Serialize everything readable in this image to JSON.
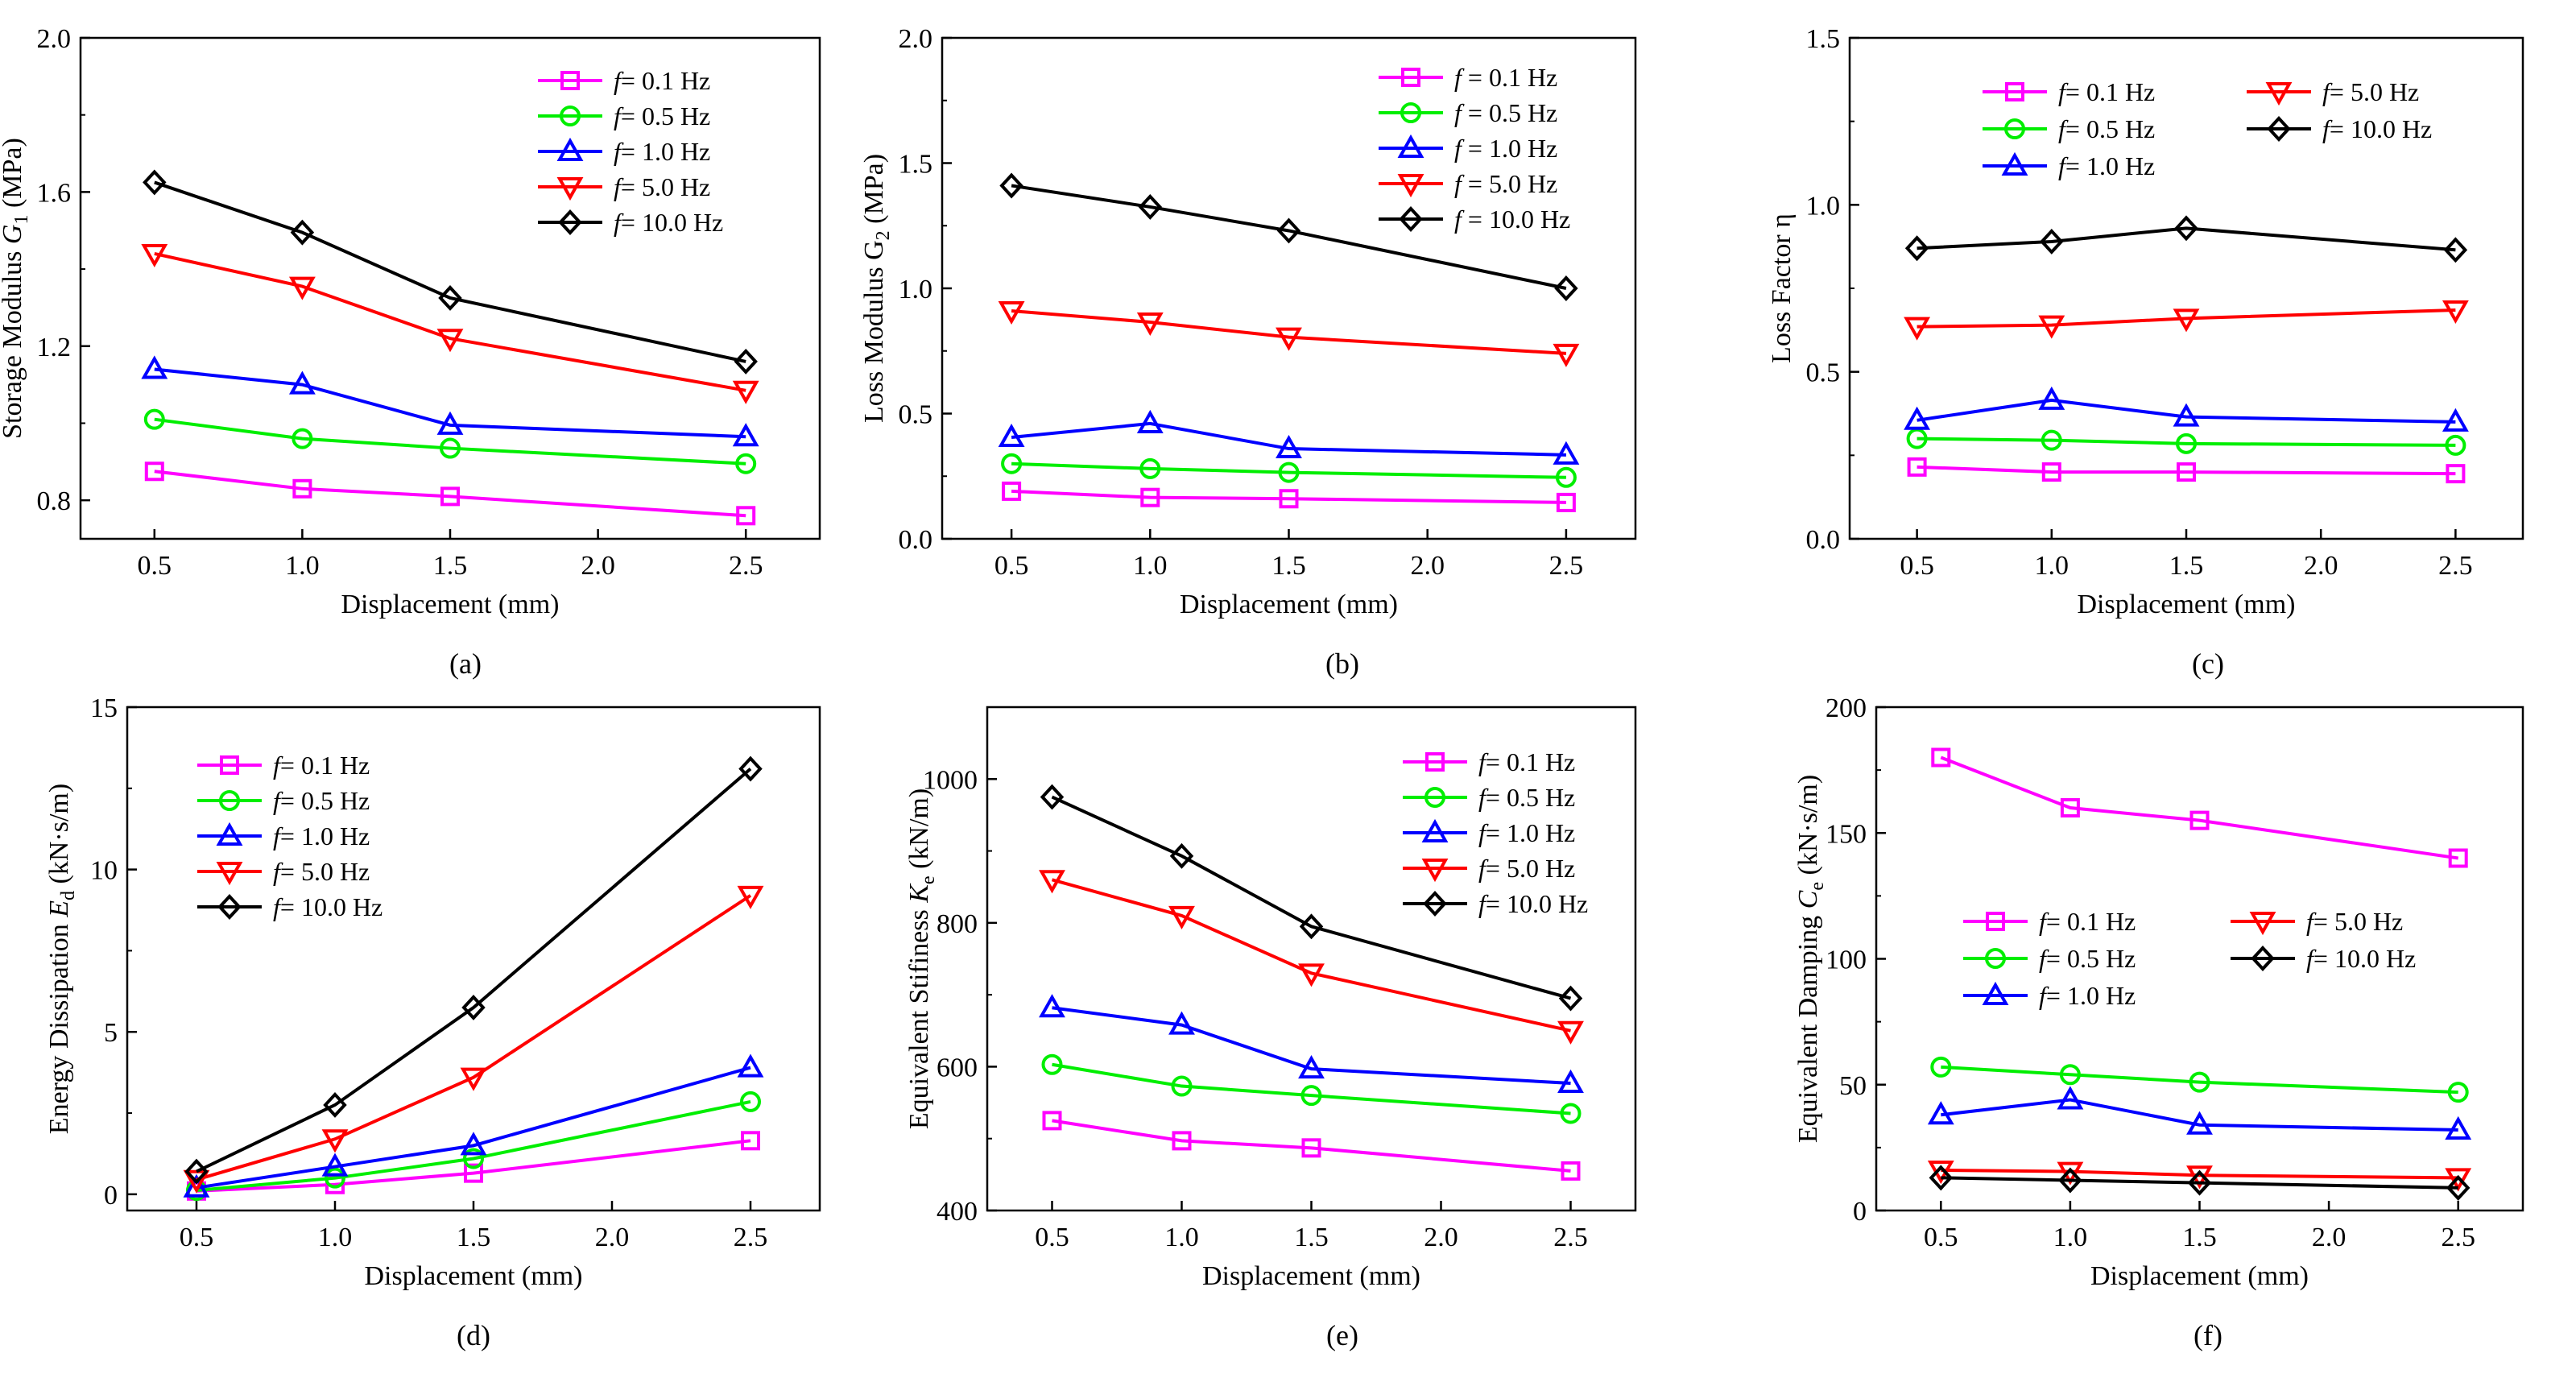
{
  "chart_data": [
    {
      "panel": "(a)",
      "type": "line",
      "caption": "(a)",
      "ylabel": {
        "main": "Storage Modulus ",
        "var": "G",
        "sub": "1",
        "unit": " (MPa)"
      },
      "xlabel": "Displacement (mm)",
      "xlim": [
        0.25,
        2.75
      ],
      "xticks": [
        "0.5",
        "1.0",
        "1.5",
        "2.0",
        "2.5"
      ],
      "ylim": [
        0.7,
        2.0
      ],
      "yticks": [
        "0.8",
        "1.2",
        "1.6",
        "2.0"
      ],
      "legend_position": "top-right",
      "x": [
        0.5,
        1.0,
        1.5,
        2.5
      ],
      "series": [
        {
          "name": "f = 0.1 Hz",
          "legend_var": "f",
          "legend_text": "=   0.1 Hz",
          "marker": "square",
          "color": "#ff00ff",
          "values": [
            0.875,
            0.83,
            0.81,
            0.76
          ]
        },
        {
          "name": "f = 0.5 Hz",
          "legend_var": "f",
          "legend_text": "=   0.5 Hz",
          "marker": "circle",
          "color": "#00ee00",
          "values": [
            1.01,
            0.96,
            0.935,
            0.895
          ]
        },
        {
          "name": "f = 1.0 Hz",
          "legend_var": "f",
          "legend_text": "=   1.0 Hz",
          "marker": "triangle-up",
          "color": "#0000ff",
          "values": [
            1.14,
            1.1,
            0.995,
            0.965
          ]
        },
        {
          "name": "f = 5.0 Hz",
          "legend_var": "f",
          "legend_text": "=   5.0 Hz",
          "marker": "triangle-down",
          "color": "#ff0000",
          "values": [
            1.44,
            1.355,
            1.22,
            1.085
          ]
        },
        {
          "name": "f = 10.0 Hz",
          "legend_var": "f",
          "legend_text": "= 10.0 Hz",
          "marker": "diamond",
          "color": "#000000",
          "values": [
            1.625,
            1.495,
            1.325,
            1.16
          ]
        }
      ]
    },
    {
      "panel": "(b)",
      "type": "line",
      "caption": "(b)",
      "ylabel": {
        "main": "Loss Modulus G",
        "var": "",
        "sub": "2",
        "unit": " (MPa)"
      },
      "xlabel": "Displacement (mm)",
      "xlim": [
        0.25,
        2.75
      ],
      "xticks": [
        "0.5",
        "1.0",
        "1.5",
        "2.0",
        "2.5"
      ],
      "ylim": [
        0.0,
        2.0
      ],
      "yticks": [
        "0.0",
        "0.5",
        "1.0",
        "1.5",
        "2.0"
      ],
      "legend_position": "top-right",
      "x": [
        0.5,
        1.0,
        1.5,
        2.5
      ],
      "series": [
        {
          "name": "f = 0.1 Hz",
          "legend_var": "f",
          "legend_text": " = 0.1 Hz",
          "marker": "square",
          "color": "#ff00ff",
          "values": [
            0.19,
            0.165,
            0.16,
            0.145
          ]
        },
        {
          "name": "f = 0.5 Hz",
          "legend_var": "f",
          "legend_text": " = 0.5 Hz",
          "marker": "circle",
          "color": "#00ee00",
          "values": [
            0.3,
            0.28,
            0.265,
            0.245
          ]
        },
        {
          "name": "f = 1.0 Hz",
          "legend_var": "f",
          "legend_text": " = 1.0 Hz",
          "marker": "triangle-up",
          "color": "#0000ff",
          "values": [
            0.405,
            0.46,
            0.36,
            0.335
          ]
        },
        {
          "name": "f = 5.0 Hz",
          "legend_var": "f",
          "legend_text": " = 5.0 Hz",
          "marker": "triangle-down",
          "color": "#ff0000",
          "values": [
            0.91,
            0.865,
            0.805,
            0.74
          ]
        },
        {
          "name": "f = 10.0 Hz",
          "legend_var": "f",
          "legend_text": " = 10.0 Hz",
          "marker": "diamond",
          "color": "#000000",
          "values": [
            1.41,
            1.325,
            1.23,
            1.0
          ]
        }
      ]
    },
    {
      "panel": "(c)",
      "type": "line",
      "caption": "(c)",
      "ylabel": {
        "main": "Loss Factor η",
        "var": "",
        "sub": "",
        "unit": ""
      },
      "xlabel": "Displacement (mm)",
      "xlim": [
        0.25,
        2.75
      ],
      "xticks": [
        "0.5",
        "1.0",
        "1.5",
        "2.0",
        "2.5"
      ],
      "ylim": [
        0.0,
        1.5
      ],
      "yticks": [
        "0.0",
        "0.5",
        "1.0",
        "1.5"
      ],
      "legend_position": "top, two columns",
      "x": [
        0.5,
        1.0,
        1.5,
        2.5
      ],
      "series": [
        {
          "name": "f = 0.1 Hz",
          "legend_var": "f",
          "legend_text": "=  0.1 Hz",
          "marker": "square",
          "color": "#ff00ff",
          "values": [
            0.215,
            0.2,
            0.2,
            0.195
          ]
        },
        {
          "name": "f = 0.5 Hz",
          "legend_var": "f",
          "legend_text": "=  0.5 Hz",
          "marker": "circle",
          "color": "#00ee00",
          "values": [
            0.3,
            0.295,
            0.285,
            0.28
          ]
        },
        {
          "name": "f = 1.0 Hz",
          "legend_var": "f",
          "legend_text": "=  1.0 Hz",
          "marker": "triangle-up",
          "color": "#0000ff",
          "values": [
            0.355,
            0.415,
            0.365,
            0.35
          ]
        },
        {
          "name": "f = 5.0 Hz",
          "legend_var": "f",
          "legend_text": "=  5.0 Hz",
          "marker": "triangle-down",
          "color": "#ff0000",
          "values": [
            0.635,
            0.64,
            0.66,
            0.685
          ]
        },
        {
          "name": "f = 10.0 Hz",
          "legend_var": "f",
          "legend_text": "= 10.0 Hz",
          "marker": "diamond",
          "color": "#000000",
          "values": [
            0.87,
            0.89,
            0.93,
            0.865
          ]
        }
      ]
    },
    {
      "panel": "(d)",
      "type": "line",
      "caption": "(d)",
      "ylabel": {
        "main": "Energy Dissipation ",
        "var": "E",
        "sub": "d",
        "unit": " (kN·s/m)"
      },
      "xlabel": "Displacement (mm)",
      "xlim": [
        0.25,
        2.75
      ],
      "xticks": [
        "0.5",
        "1.0",
        "1.5",
        "2.0",
        "2.5"
      ],
      "ylim": [
        -0.5,
        15.0
      ],
      "yticks": [
        "0",
        "5",
        "10",
        "15"
      ],
      "ytick_values": [
        0,
        5,
        10,
        15
      ],
      "legend_position": "top-left",
      "x": [
        0.5,
        1.0,
        1.5,
        2.5
      ],
      "series": [
        {
          "name": "f = 0.1 Hz",
          "legend_var": "f",
          "legend_text": "=   0.1 Hz",
          "marker": "square",
          "color": "#ff00ff",
          "values": [
            0.1,
            0.3,
            0.65,
            1.65
          ]
        },
        {
          "name": "f = 0.5 Hz",
          "legend_var": "f",
          "legend_text": "=   0.5 Hz",
          "marker": "circle",
          "color": "#00ee00",
          "values": [
            0.12,
            0.5,
            1.1,
            2.85
          ]
        },
        {
          "name": "f = 1.0 Hz",
          "legend_var": "f",
          "legend_text": "=   1.0 Hz",
          "marker": "triangle-up",
          "color": "#0000ff",
          "values": [
            0.2,
            0.85,
            1.5,
            3.9
          ]
        },
        {
          "name": "f = 5.0 Hz",
          "legend_var": "f",
          "legend_text": "=   5.0 Hz",
          "marker": "triangle-down",
          "color": "#ff0000",
          "values": [
            0.45,
            1.7,
            3.6,
            9.2
          ]
        },
        {
          "name": "f = 10.0 Hz",
          "legend_var": "f",
          "legend_text": "= 10.0 Hz",
          "marker": "diamond",
          "color": "#000000",
          "values": [
            0.7,
            2.75,
            5.75,
            13.1
          ]
        }
      ]
    },
    {
      "panel": "(e)",
      "type": "line",
      "caption": "(e)",
      "ylabel": {
        "main": "Equivalent Stifiness ",
        "var": "K",
        "sub": "e",
        "unit": " (kN/m)"
      },
      "xlabel": "Displacement (mm)",
      "xlim": [
        0.25,
        2.75
      ],
      "xticks": [
        "0.5",
        "1.0",
        "1.5",
        "2.0",
        "2.5"
      ],
      "ylim": [
        400,
        1100
      ],
      "yticks": [
        "400",
        "600",
        "800",
        "1000"
      ],
      "legend_position": "top-right",
      "x": [
        0.5,
        1.0,
        1.5,
        2.5
      ],
      "series": [
        {
          "name": "f = 0.1 Hz",
          "legend_var": "f",
          "legend_text": "=   0.1 Hz",
          "marker": "square",
          "color": "#ff00ff",
          "values": [
            525,
            497,
            487,
            455
          ]
        },
        {
          "name": "f = 0.5 Hz",
          "legend_var": "f",
          "legend_text": "=   0.5 Hz",
          "marker": "circle",
          "color": "#00ee00",
          "values": [
            603,
            573,
            560,
            535
          ]
        },
        {
          "name": "f = 1.0 Hz",
          "legend_var": "f",
          "legend_text": "=   1.0 Hz",
          "marker": "triangle-up",
          "color": "#0000ff",
          "values": [
            682,
            658,
            597,
            577
          ]
        },
        {
          "name": "f = 5.0 Hz",
          "legend_var": "f",
          "legend_text": "=   5.0 Hz",
          "marker": "triangle-down",
          "color": "#ff0000",
          "values": [
            860,
            810,
            730,
            650
          ]
        },
        {
          "name": "f = 10.0 Hz",
          "legend_var": "f",
          "legend_text": "= 10.0 Hz",
          "marker": "diamond",
          "color": "#000000",
          "values": [
            975,
            893,
            795,
            695
          ]
        }
      ]
    },
    {
      "panel": "(f)",
      "type": "line",
      "caption": "(f)",
      "ylabel": {
        "main": "Equivalent Damping ",
        "var": "C",
        "sub": "e",
        "unit": " (kN·s/m)"
      },
      "xlabel": "Displacement (mm)",
      "xlim": [
        0.25,
        2.75
      ],
      "xticks": [
        "0.5",
        "1.0",
        "1.5",
        "2.0",
        "2.5"
      ],
      "ylim": [
        0,
        200
      ],
      "yticks": [
        "0",
        "50",
        "100",
        "150",
        "200"
      ],
      "legend_position": "center, two columns",
      "x": [
        0.5,
        1.0,
        1.5,
        2.5
      ],
      "series": [
        {
          "name": "f = 0.1 Hz",
          "legend_var": "f",
          "legend_text": "=  0.1 Hz",
          "marker": "square",
          "color": "#ff00ff",
          "values": [
            180,
            160,
            155,
            140
          ]
        },
        {
          "name": "f = 0.5 Hz",
          "legend_var": "f",
          "legend_text": "=  0.5 Hz",
          "marker": "circle",
          "color": "#00ee00",
          "values": [
            57,
            54,
            51,
            47
          ]
        },
        {
          "name": "f = 1.0 Hz",
          "legend_var": "f",
          "legend_text": "=  1.0 Hz",
          "marker": "triangle-up",
          "color": "#0000ff",
          "values": [
            38,
            44,
            34,
            32
          ]
        },
        {
          "name": "f = 5.0 Hz",
          "legend_var": "f",
          "legend_text": "=   5.0 Hz",
          "marker": "triangle-down",
          "color": "#ff0000",
          "values": [
            16,
            15.5,
            14,
            13
          ]
        },
        {
          "name": "f = 10.0 Hz",
          "legend_var": "f",
          "legend_text": "= 10.0 Hz",
          "marker": "diamond",
          "color": "#000000",
          "values": [
            13,
            12,
            11,
            9
          ]
        }
      ]
    }
  ]
}
